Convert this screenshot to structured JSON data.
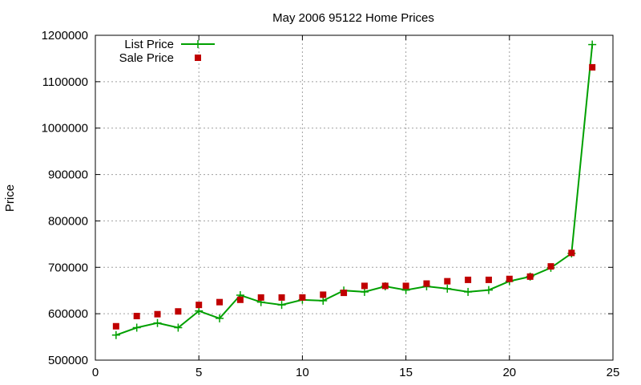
{
  "chart_data": {
    "type": "scatter",
    "title": "May 2006 95122 Home Prices",
    "xlabel": "",
    "ylabel": "Price",
    "xlim": [
      0,
      25
    ],
    "ylim": [
      500000,
      1200000
    ],
    "xticks": [
      "0",
      "5",
      "10",
      "15",
      "20",
      "25"
    ],
    "yticks": [
      "500000",
      "600000",
      "700000",
      "800000",
      "900000",
      "1000000",
      "1100000",
      "1200000"
    ],
    "grid": true,
    "legend_position": "top-left",
    "series": [
      {
        "name": "List Price",
        "style": "line+cross",
        "color": "#00a000",
        "x": [
          1,
          2,
          3,
          4,
          5,
          6,
          7,
          8,
          9,
          10,
          11,
          12,
          13,
          14,
          15,
          16,
          17,
          18,
          19,
          20,
          21,
          22,
          23,
          24
        ],
        "y": [
          554000,
          570000,
          580000,
          570000,
          606000,
          590000,
          640000,
          625000,
          619000,
          630000,
          628000,
          650000,
          647000,
          659000,
          651000,
          659000,
          654000,
          647000,
          651000,
          670000,
          680000,
          699000,
          730000,
          1180000
        ]
      },
      {
        "name": "Sale Price",
        "style": "square",
        "color": "#c00000",
        "x": [
          1,
          2,
          3,
          4,
          5,
          6,
          7,
          8,
          9,
          10,
          11,
          12,
          13,
          14,
          15,
          16,
          17,
          18,
          19,
          20,
          21,
          22,
          23,
          24
        ],
        "y": [
          573000,
          595000,
          599000,
          605000,
          619000,
          625000,
          630000,
          635000,
          635000,
          635000,
          641000,
          645000,
          660000,
          660000,
          660000,
          665000,
          670000,
          673000,
          673000,
          675000,
          680000,
          702000,
          731000,
          1131000
        ]
      }
    ]
  }
}
